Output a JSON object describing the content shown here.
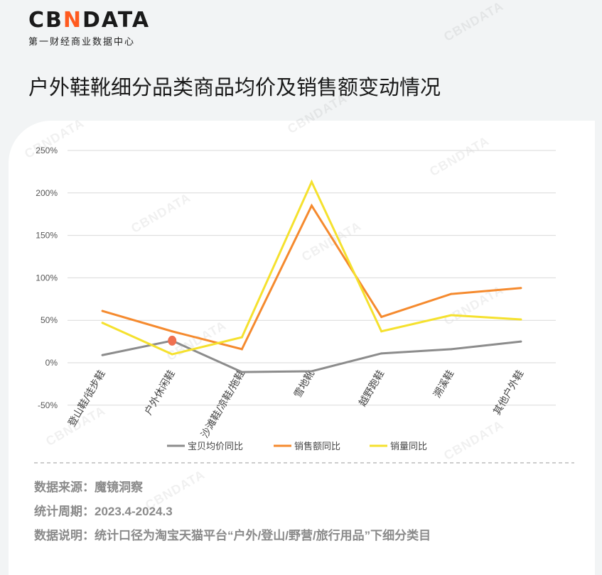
{
  "logo": {
    "mark_a": "CB",
    "mark_x": "N",
    "mark_b": "DATA",
    "subtitle": "第一财经商业数据中心"
  },
  "title": "户外鞋靴细分品类商品均价及销售额变动情况",
  "watermark": "CBNDATA",
  "chart_data": {
    "type": "line",
    "categories": [
      "登山鞋/徒步鞋",
      "户外休闲鞋",
      "沙滩鞋/凉鞋/拖鞋",
      "雪地靴",
      "越野跑鞋",
      "溯溪鞋",
      "其他户外鞋"
    ],
    "yticks": [
      "-50%",
      "0%",
      "50%",
      "100%",
      "150%",
      "200%",
      "250%"
    ],
    "ylim": [
      -50,
      250
    ],
    "grid": true,
    "legend_position": "bottom",
    "series": [
      {
        "name": "宝贝均价同比",
        "color": "#8c8c8c",
        "values": [
          9,
          26,
          -11,
          -10,
          11,
          16,
          25
        ]
      },
      {
        "name": "销售额同比",
        "color": "#f58a2e",
        "values": [
          61,
          37,
          16,
          185,
          54,
          81,
          88
        ]
      },
      {
        "name": "销量同比",
        "color": "#f5e12e",
        "values": [
          47,
          10,
          30,
          213,
          37,
          56,
          51
        ]
      }
    ],
    "highlight": {
      "category": "户外休闲鞋",
      "series": "宝贝均价同比",
      "color": "#f07050"
    }
  },
  "footer": {
    "source": "数据来源：魔镜洞察",
    "period": "统计周期：2023.4-2024.3",
    "note": "数据说明：统计口径为淘宝天猫平台“户外/登山/野营/旅行用品”下细分类目"
  }
}
